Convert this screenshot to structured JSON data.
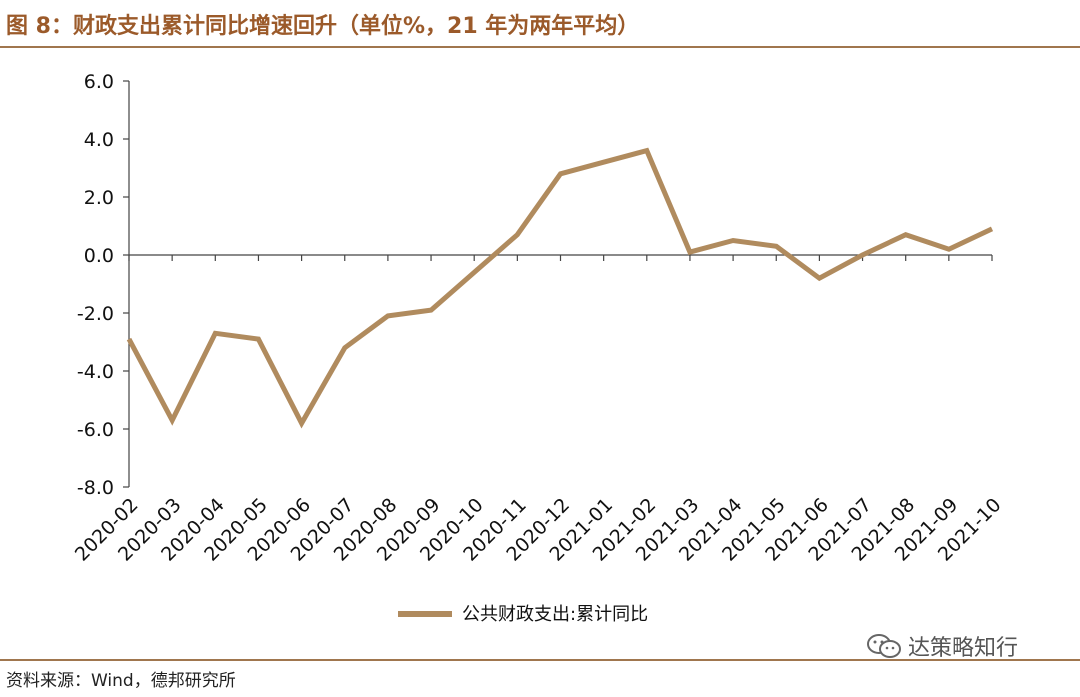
{
  "header": {
    "title": "图 8：财政支出累计同比增速回升（单位%，21 年为两年平均）"
  },
  "footer": {
    "source": "资料来源：Wind，德邦研究所",
    "watermark": "达策略知行"
  },
  "colors": {
    "series": "#b08b5e",
    "title": "#9b5a2a",
    "rule": "#a0764e",
    "axis": "#444444"
  },
  "chart_data": {
    "type": "line",
    "categories": [
      "2020-02",
      "2020-03",
      "2020-04",
      "2020-05",
      "2020-06",
      "2020-07",
      "2020-08",
      "2020-09",
      "2020-10",
      "2020-11",
      "2020-12",
      "2021-01",
      "2021-02",
      "2021-03",
      "2021-04",
      "2021-05",
      "2021-06",
      "2021-07",
      "2021-08",
      "2021-09",
      "2021-10"
    ],
    "series": [
      {
        "name": "公共财政支出:累计同比",
        "values": [
          -2.9,
          -5.7,
          -2.7,
          -2.9,
          -5.8,
          -3.2,
          -2.1,
          -1.9,
          -0.6,
          0.7,
          2.8,
          3.2,
          3.6,
          0.1,
          0.5,
          0.3,
          -0.8,
          0.0,
          0.7,
          0.2,
          0.9
        ]
      }
    ],
    "yticks": [
      "6.0",
      "4.0",
      "2.0",
      "0.0",
      "-2.0",
      "-4.0",
      "-6.0",
      "-8.0"
    ],
    "ylim": [
      -8,
      6
    ],
    "grid": false,
    "legend": "bottom-center"
  }
}
